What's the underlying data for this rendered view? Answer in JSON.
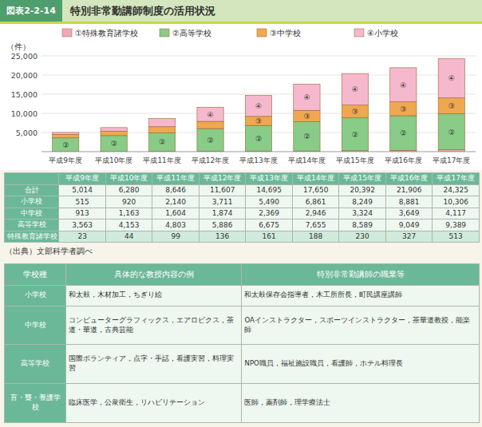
{
  "chart_data": [
    {
      "type": "bar",
      "stacked": true,
      "title": "特別非常勤講師制度の活用状況",
      "annotations": [
        "図表2-2-14",
        "（出典）文部科学者調べ"
      ],
      "ylabel": "（件）",
      "categories": [
        "平成9年度",
        "平成10年度",
        "平成11年度",
        "平成12年度",
        "平成13年度",
        "平成14年度",
        "平成15年度",
        "平成16年度",
        "平成17年度"
      ],
      "series": [
        {
          "name": "特殊教育諸学校",
          "label": "①",
          "color": "#f2a8b8",
          "values": [
            23,
            44,
            99,
            136,
            161,
            188,
            230,
            327,
            513
          ]
        },
        {
          "name": "高等学校",
          "label": "②",
          "color": "#88cc88",
          "values": [
            3563,
            4153,
            4803,
            5886,
            6675,
            7655,
            8589,
            9049,
            9389
          ]
        },
        {
          "name": "中学校",
          "label": "③",
          "color": "#f0a850",
          "values": [
            913,
            1163,
            1604,
            1874,
            2369,
            2946,
            3324,
            3649,
            4117
          ]
        },
        {
          "name": "小学校",
          "label": "④",
          "color": "#f5b8cc",
          "values": [
            515,
            920,
            2140,
            3711,
            5490,
            6861,
            8249,
            8881,
            10306
          ]
        }
      ],
      "ylim": [
        0,
        25000
      ],
      "yticks": [
        {
          "value": 5000,
          "label": "5,000"
        },
        {
          "value": 10000,
          "label": "10,000"
        },
        {
          "value": 15000,
          "label": "15,000"
        },
        {
          "value": 20000,
          "label": "20,000"
        },
        {
          "value": 25000,
          "label": "25,000"
        }
      ],
      "grid": true,
      "legend": "top"
    },
    {
      "type": "table",
      "categories": [
        "平成9年度",
        "平成10年度",
        "平成11年度",
        "平成12年度",
        "平成13年度",
        "平成14年度",
        "平成15年度",
        "平成16年度",
        "平成17年度"
      ],
      "series": [
        {
          "name": "合計",
          "values": [
            5014,
            6280,
            8646,
            11607,
            14695,
            17650,
            20392,
            21906,
            24325
          ],
          "value_labels": [
            "5,014",
            "6,280",
            "8,646",
            "11,607",
            "14,695",
            "17,650",
            "20,392",
            "21,906",
            "24,325"
          ]
        },
        {
          "name": "小学校",
          "values": [
            515,
            920,
            2140,
            3711,
            5490,
            6861,
            8249,
            8881,
            10306
          ],
          "value_labels": [
            "515",
            "920",
            "2,140",
            "3,711",
            "5,490",
            "6,861",
            "8,249",
            "8,881",
            "10,306"
          ]
        },
        {
          "name": "中学校",
          "values": [
            913,
            1163,
            1604,
            1874,
            2369,
            2946,
            3324,
            3649,
            4117
          ],
          "value_labels": [
            "913",
            "1,163",
            "1,604",
            "1,874",
            "2,369",
            "2,946",
            "3,324",
            "3,649",
            "4,117"
          ]
        },
        {
          "name": "高等学校",
          "values": [
            3563,
            4153,
            4803,
            5886,
            6675,
            7655,
            8589,
            9049,
            9389
          ],
          "value_labels": [
            "3,563",
            "4,153",
            "4,803",
            "5,886",
            "6,675",
            "7,655",
            "8,589",
            "9,049",
            "9,389"
          ]
        },
        {
          "name": "特殊教育諸学校",
          "values": [
            23,
            44,
            99,
            136,
            161,
            188,
            230,
            327,
            513
          ],
          "value_labels": [
            "23",
            "44",
            "99",
            "136",
            "161",
            "188",
            "230",
            "327",
            "513"
          ]
        }
      ]
    },
    {
      "type": "table",
      "columns": [
        "学校種",
        "具体的な教授内容の例",
        "特別非常勤講師の職業等"
      ],
      "rows": [
        [
          "小学校",
          "和太鼓，木材加工，ちぎり絵",
          "和太鼓保存会指導者，木工所所長，町民講座講師"
        ],
        [
          "中学校",
          "コンピューターグラフィックス，エアロビクス，茶道・華道，古典芸能",
          "OAインストラクター，スポーツインストラクター，茶華道教授，能楽師"
        ],
        [
          "高等学校",
          "国際ボランティア，点字・手話，看護実習，料理実習",
          "NPO職員，福祉施設職員，看護師，ホテル料理長"
        ],
        [
          "盲・聾・養護学校",
          "臨床医学，公衆衛生，リハビリテーション",
          "医師，薬剤師，理学療法士"
        ]
      ]
    }
  ]
}
